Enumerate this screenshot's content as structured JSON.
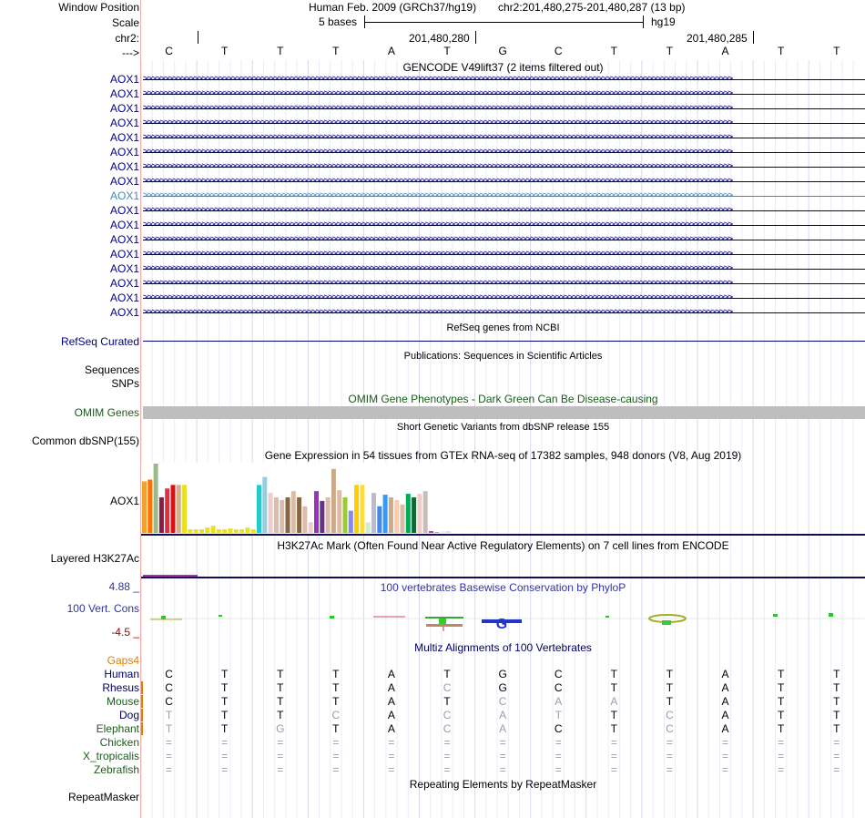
{
  "header": {
    "window_position_label": "Window Position",
    "assembly_text": "Human Feb. 2009 (GRCh37/hg19)",
    "position_text": "chr2:201,480,275-201,480,287 (13 bp)",
    "scale_label": "Scale",
    "scale_text": "5 bases",
    "scale_db": "hg19",
    "chrom_label": "chr2:",
    "coord_1": "201,480,280",
    "coord_2": "201,480,285",
    "strand_label": "--->"
  },
  "sequence": [
    "C",
    "T",
    "T",
    "T",
    "A",
    "T",
    "G",
    "C",
    "T",
    "T",
    "A",
    "T",
    "T"
  ],
  "gencode": {
    "title": "GENCODE V49lift37 (2 items filtered out)",
    "items": [
      "AOX1",
      "AOX1",
      "AOX1",
      "AOX1",
      "AOX1",
      "AOX1",
      "AOX1",
      "AOX1",
      "AOX1",
      "AOX1",
      "AOX1",
      "AOX1",
      "AOX1",
      "AOX1",
      "AOX1",
      "AOX1",
      "AOX1"
    ],
    "highlight_index": 8
  },
  "refseq": {
    "title": "RefSeq genes from NCBI",
    "label": "RefSeq Curated"
  },
  "publications": {
    "title": "Publications: Sequences in Scientific Articles",
    "label_1": "Sequences",
    "label_2": "SNPs"
  },
  "omim": {
    "title": "OMIM Gene Phenotypes - Dark Green Can Be Disease-causing",
    "label": "OMIM Genes"
  },
  "dbsnp": {
    "title": "Short Genetic Variants from dbSNP release 155",
    "label": "Common dbSNP(155)"
  },
  "gtex": {
    "title": "Gene Expression in 54 tissues from GTEx RNA-seq of 17382 samples, 948 donors (V8, Aug 2019)",
    "label": "AOX1",
    "values": [
      58,
      60,
      78,
      40,
      50,
      54,
      54,
      54,
      4,
      4,
      4,
      6,
      8,
      4,
      4,
      5,
      4,
      4,
      6,
      4,
      54,
      63,
      45,
      40,
      37,
      40,
      47,
      40,
      30,
      12,
      47,
      36,
      40,
      72,
      48,
      40,
      25,
      54,
      54,
      12,
      45,
      30,
      43,
      40,
      37,
      32,
      44,
      40,
      44,
      47,
      2,
      1,
      2,
      2
    ],
    "colors": [
      "#f4a030",
      "#ff7000",
      "#99bb88",
      "#8a1a4a",
      "#e03040",
      "#dd1111",
      "#d0b090",
      "#e8e020",
      "#e8e020",
      "#e8e020",
      "#e8e020",
      "#e8e020",
      "#e8e020",
      "#e8e020",
      "#e8e020",
      "#e8e020",
      "#e8e020",
      "#e8e020",
      "#e8e020",
      "#e8e020",
      "#22cccc",
      "#99ccdd",
      "#eecccc",
      "#ddbbaa",
      "#ddbbaa",
      "#886644",
      "#ddbbaa",
      "#886644",
      "#ddbbaa",
      "#eecccc",
      "#9933bb",
      "#663388",
      "#ddbbaa",
      "#ccaa88",
      "#ddbbaa",
      "#99cc33",
      "#8888ee",
      "#ffcc00",
      "#ffdd33",
      "#cceecc",
      "#bbbbcc",
      "#4488ee",
      "#3399ff",
      "#ccaa88",
      "#ffccaa",
      "#ddbbaa",
      "#00aa55",
      "#116633",
      "#eecccc",
      "#ccbbbb",
      "#cc33aa",
      "#aaaaaa",
      "#eeeeee",
      "#dddddd"
    ]
  },
  "h3k27ac": {
    "title": "H3K27Ac Mark (Often Found Near Active Regulatory Elements) on 7 cell lines from ENCODE",
    "label": "Layered H3K27Ac"
  },
  "phylop": {
    "title": "100 vertebrates Basewise Conservation by PhyloP",
    "label": "100 Vert. Cons",
    "max_label": "4.88 _",
    "min_label": "-4.5 _"
  },
  "multiz": {
    "title": "Multiz Alignments of 100 Vertebrates",
    "gaps_label": "Gaps4",
    "species": [
      {
        "name": "Human",
        "color": "#000066",
        "bases": [
          "C",
          "T",
          "T",
          "T",
          "A",
          "T",
          "G",
          "C",
          "T",
          "T",
          "A",
          "T",
          "T"
        ],
        "dim": [
          0,
          0,
          0,
          0,
          0,
          0,
          0,
          0,
          0,
          0,
          0,
          0,
          0
        ]
      },
      {
        "name": "Rhesus",
        "color": "#000066",
        "bases": [
          "C",
          "T",
          "T",
          "T",
          "A",
          "C",
          "G",
          "C",
          "T",
          "T",
          "A",
          "T",
          "T"
        ],
        "dim": [
          0,
          0,
          0,
          0,
          0,
          1,
          0,
          0,
          0,
          0,
          0,
          0,
          0
        ]
      },
      {
        "name": "Mouse",
        "color": "#1a5c1a",
        "bases": [
          "C",
          "T",
          "T",
          "T",
          "A",
          "T",
          "C",
          "A",
          "A",
          "T",
          "A",
          "T",
          "T"
        ],
        "dim": [
          0,
          0,
          0,
          0,
          0,
          0,
          1,
          1,
          1,
          0,
          0,
          0,
          0
        ]
      },
      {
        "name": "Dog",
        "color": "#000066",
        "bases": [
          "T",
          "T",
          "T",
          "C",
          "A",
          "C",
          "A",
          "T",
          "T",
          "C",
          "A",
          "T",
          "T"
        ],
        "dim": [
          1,
          0,
          0,
          1,
          0,
          1,
          1,
          1,
          0,
          1,
          0,
          0,
          0
        ]
      },
      {
        "name": "Elephant",
        "color": "#1a5c1a",
        "bases": [
          "T",
          "T",
          "G",
          "T",
          "A",
          "C",
          "A",
          "C",
          "T",
          "C",
          "A",
          "T",
          "T"
        ],
        "dim": [
          1,
          0,
          1,
          0,
          0,
          1,
          1,
          0,
          0,
          1,
          0,
          0,
          0
        ]
      },
      {
        "name": "Chicken",
        "color": "#1a5c1a",
        "bases": [
          "=",
          "=",
          "=",
          "=",
          "=",
          "=",
          "=",
          "=",
          "=",
          "=",
          "=",
          "=",
          "="
        ],
        "dim": [
          1,
          1,
          1,
          1,
          1,
          1,
          1,
          1,
          1,
          1,
          1,
          1,
          1
        ]
      },
      {
        "name": "X_tropicalis",
        "color": "#1a5c1a",
        "bases": [
          "=",
          "=",
          "=",
          "=",
          "=",
          "=",
          "=",
          "=",
          "=",
          "=",
          "=",
          "=",
          "="
        ],
        "dim": [
          1,
          1,
          1,
          1,
          1,
          1,
          1,
          1,
          1,
          1,
          1,
          1,
          1
        ]
      },
      {
        "name": "Zebrafish",
        "color": "#1a5c1a",
        "bases": [
          "=",
          "=",
          "=",
          "=",
          "=",
          "=",
          "=",
          "=",
          "=",
          "=",
          "=",
          "=",
          "="
        ],
        "dim": [
          1,
          1,
          1,
          1,
          1,
          1,
          1,
          1,
          1,
          1,
          1,
          1,
          1
        ]
      }
    ]
  },
  "repeatmasker": {
    "title": "Repeating Elements by RepeatMasker",
    "label": "RepeatMasker"
  },
  "colors": {
    "gene": "#000080",
    "gene_highlight": "#4488bb",
    "omim_bar": "#bebebe",
    "label_navy": "#000080",
    "label_green": "#1a5c1a",
    "gaps_orange": "#e08000",
    "phylop_blue": "#3333aa",
    "phylop_max": "#333399",
    "phylop_min": "#aa0000"
  }
}
